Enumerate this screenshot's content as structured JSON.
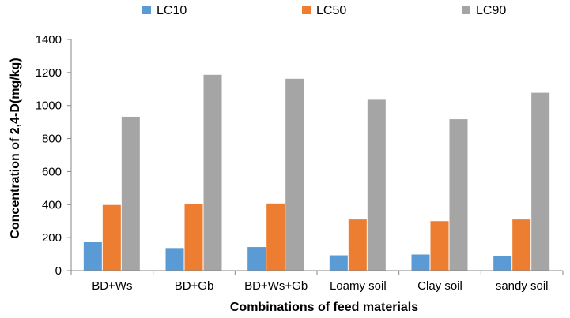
{
  "chart_data": {
    "type": "bar",
    "title": "",
    "xlabel": "Combinations of feed materials",
    "ylabel": "Concentration of 2,4-D(mg/kg)",
    "categories": [
      "BD+Ws",
      "BD+Gb",
      "BD+Ws+Gb",
      "Loamy soil",
      "Clay soil",
      "sandy soil"
    ],
    "series": [
      {
        "name": "LC10",
        "color": "#5b9bd5",
        "values": [
          172,
          137,
          143,
          93,
          98,
          90
        ]
      },
      {
        "name": "LC50",
        "color": "#ed7d31",
        "values": [
          398,
          402,
          407,
          310,
          300,
          310
        ]
      },
      {
        "name": "LC90",
        "color": "#a5a5a5",
        "values": [
          932,
          1186,
          1162,
          1035,
          917,
          1077
        ]
      }
    ],
    "ylim": [
      0,
      1400
    ],
    "yticks": [
      0,
      200,
      400,
      600,
      800,
      1000,
      1200,
      1400
    ],
    "grid": false,
    "legend_position": "top"
  }
}
